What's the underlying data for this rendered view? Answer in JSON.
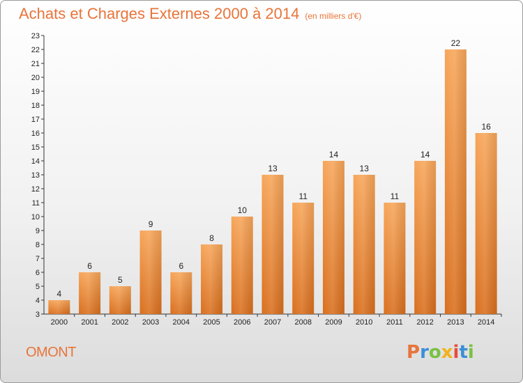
{
  "chart_data": {
    "type": "bar",
    "title": "Achats et Charges Externes 2000 à 2014",
    "subtitle": "(en milliers d'€)",
    "categories": [
      "2000",
      "2001",
      "2002",
      "2003",
      "2004",
      "2005",
      "2006",
      "2007",
      "2008",
      "2009",
      "2010",
      "2011",
      "2012",
      "2013",
      "2014"
    ],
    "values": [
      4,
      6,
      5,
      9,
      6,
      8,
      10,
      13,
      11,
      14,
      13,
      11,
      14,
      22,
      16
    ],
    "ylim": [
      3,
      23
    ],
    "yticks": [
      "3",
      "4",
      "5",
      "6",
      "7",
      "8",
      "9",
      "10",
      "11",
      "12",
      "13",
      "14",
      "15",
      "16",
      "17",
      "18",
      "19",
      "20",
      "21",
      "22",
      "23"
    ],
    "xlabel": "",
    "ylabel": "",
    "grid": false,
    "bar_color": "#f0913f"
  },
  "footer": {
    "commune": "OMONT",
    "logo_text": "Proxiti",
    "logo_colors": [
      "#e8743a",
      "#3b8fd6",
      "#7ac143",
      "#f2b21a",
      "#e84c3d",
      "#3b8fd6",
      "#7ac143"
    ]
  }
}
